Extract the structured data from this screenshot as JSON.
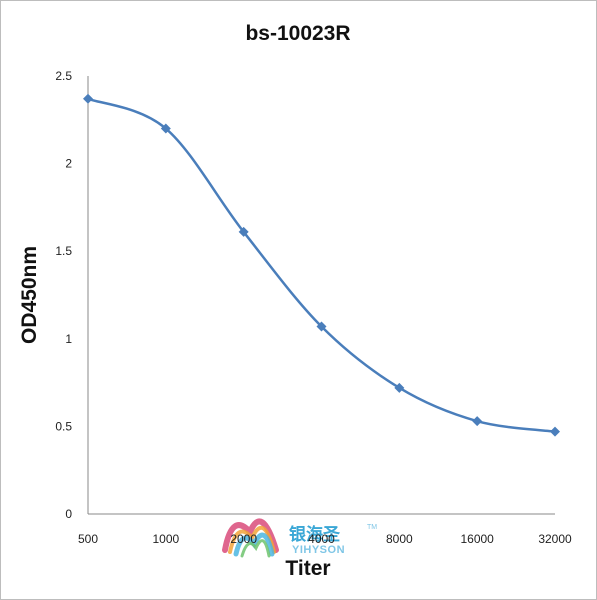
{
  "chart_data": {
    "type": "line",
    "title": "bs-10023R",
    "xlabel": "Titer",
    "ylabel": "OD450nm",
    "categories": [
      "500",
      "1000",
      "2000",
      "4000",
      "8000",
      "16000",
      "32000"
    ],
    "series": [
      {
        "values": [
          2.37,
          2.2,
          1.61,
          1.07,
          0.72,
          0.53,
          0.47
        ]
      }
    ],
    "ylim": [
      0,
      2.5
    ],
    "yticks": [
      "0",
      "0.5",
      "1",
      "1.5",
      "2",
      "2.5"
    ],
    "grid": false,
    "legend": "none",
    "colors": {
      "series": "#4a7ebb",
      "axis": "#888888"
    }
  },
  "watermark": {
    "brand_cn": "银海圣",
    "brand_en": "YIHYSON",
    "trademark": "TM"
  }
}
